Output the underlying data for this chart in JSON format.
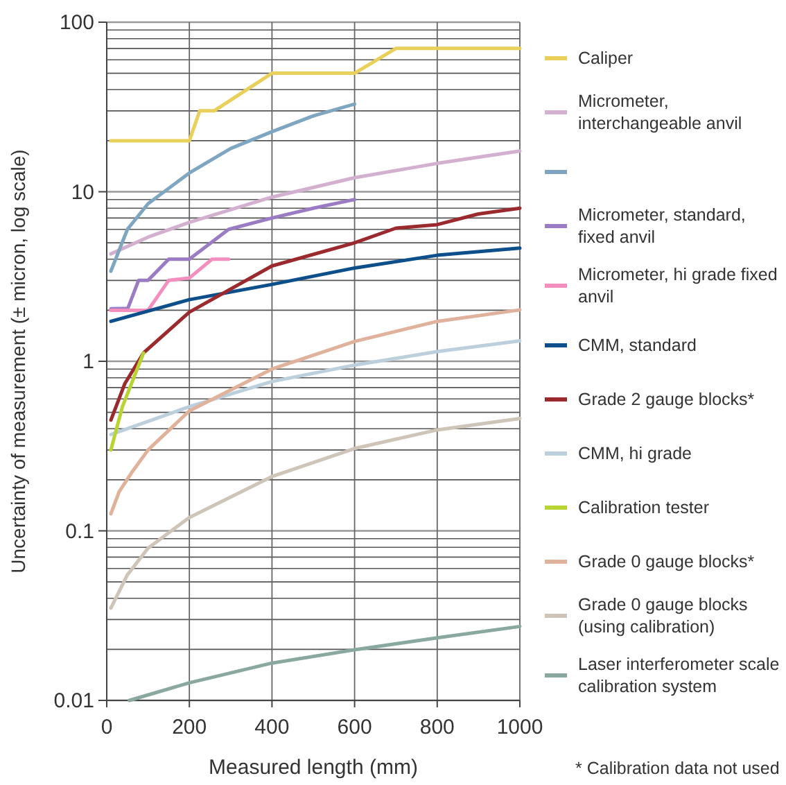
{
  "chart_data": {
    "type": "line",
    "xlabel": "Measured length (mm)",
    "ylabel": "Uncertainty of measurement (± micron, log scale)",
    "log": "y",
    "grid": true,
    "legend": "right",
    "xlim": [
      0,
      1000
    ],
    "xticks": [
      0,
      200,
      400,
      600,
      800,
      1000
    ],
    "ylim": [
      0.01,
      100
    ],
    "yticks": [
      0.01,
      0.1,
      1,
      10,
      100
    ],
    "annotations": [
      "* Calibration data not used"
    ],
    "series": [
      {
        "name": "Caliper",
        "color": "#e8d05a",
        "x": [
          10,
          200,
          225,
          260,
          400,
          600,
          700,
          1000
        ],
        "values": [
          20,
          20,
          30,
          30,
          50,
          50,
          70,
          70
        ]
      },
      {
        "name": "Micrometer, interchangeable anvil",
        "color": "#d4b0d0",
        "x": [
          10,
          100,
          200,
          400,
          600,
          800,
          1000
        ],
        "values": [
          4.3,
          5.4,
          6.6,
          9.3,
          12.1,
          14.7,
          17.4
        ]
      },
      {
        "color": "#7ea6c0",
        "x": [
          10,
          50,
          100,
          200,
          300,
          400,
          500,
          600
        ],
        "values": [
          3.4,
          6,
          8.5,
          12.9,
          18,
          22.6,
          28,
          32.9
        ]
      },
      {
        "name": "Micrometer, standard, fixed anvil",
        "color": "#9b7bc4",
        "x": [
          10,
          51,
          77,
          100,
          150,
          200,
          295,
          400,
          500,
          600
        ],
        "values": [
          2.04,
          2.05,
          3,
          3,
          4,
          4,
          6,
          7,
          8,
          9
        ]
      },
      {
        "name": "Micrometer, hi grade fixed anvil",
        "color": "#f28fbf",
        "x": [
          10,
          100,
          150,
          200,
          255,
          295
        ],
        "values": [
          2,
          2,
          3,
          3.1,
          4,
          4
        ]
      },
      {
        "name": "CMM, standard",
        "color": "#0d4f8b",
        "x": [
          10,
          200,
          400,
          600,
          800,
          1000
        ],
        "values": [
          1.72,
          2.31,
          2.84,
          3.55,
          4.22,
          4.65
        ]
      },
      {
        "name": "Grade 2 gauge blocks*",
        "color": "#9b2a2e",
        "x": [
          10,
          44,
          89,
          200,
          400,
          600,
          700,
          800,
          900,
          1000
        ],
        "values": [
          0.45,
          0.74,
          1.12,
          1.95,
          3.65,
          5,
          6.1,
          6.4,
          7.4,
          8
        ]
      },
      {
        "name": "CMM, hi grade",
        "color": "#bccfdd",
        "x": [
          10,
          200,
          400,
          600,
          800,
          1000
        ],
        "values": [
          0.37,
          0.54,
          0.76,
          0.95,
          1.14,
          1.32
        ]
      },
      {
        "name": "Calibration tester",
        "color": "#b8d432",
        "x": [
          10,
          38,
          89
        ],
        "values": [
          0.3,
          0.54,
          1.12
        ]
      },
      {
        "name": "Grade 0 gauge blocks*",
        "color": "#e0b19b",
        "x": [
          10,
          30,
          60,
          100,
          200,
          400,
          600,
          800,
          1000
        ],
        "values": [
          0.126,
          0.17,
          0.22,
          0.3,
          0.51,
          0.9,
          1.31,
          1.72,
          2.01
        ]
      },
      {
        "name": "Grade 0 gauge blocks (using calibration)",
        "color": "#cfc4b8",
        "x": [
          10,
          50,
          100,
          200,
          400,
          600,
          800,
          1000
        ],
        "values": [
          0.035,
          0.055,
          0.079,
          0.12,
          0.209,
          0.306,
          0.394,
          0.46
        ]
      },
      {
        "name": "Laser interferometer scale calibration system",
        "color": "#88a8a0",
        "x": [
          55,
          200,
          400,
          600,
          800,
          1000
        ],
        "values": [
          0.01,
          0.0127,
          0.0166,
          0.0199,
          0.0234,
          0.0273
        ]
      }
    ]
  }
}
